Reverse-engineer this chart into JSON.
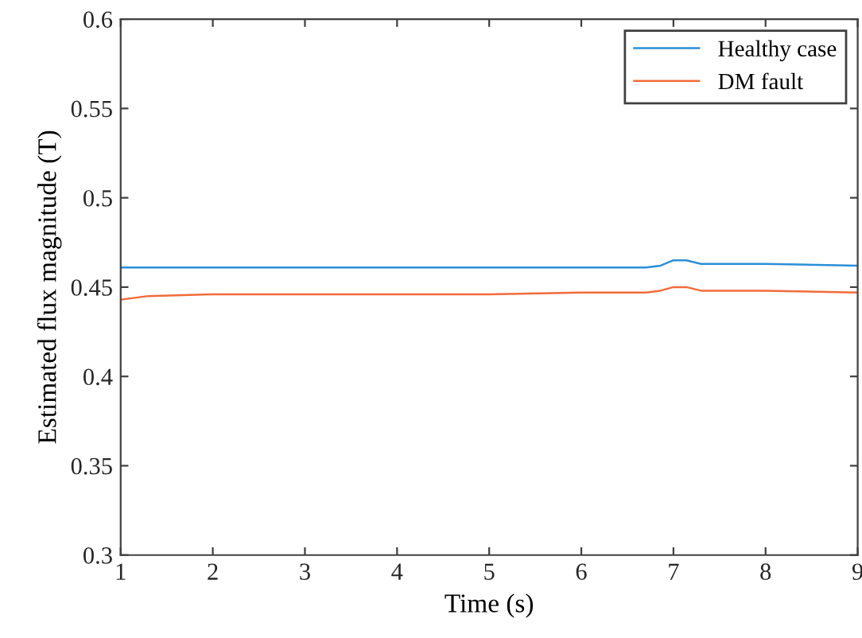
{
  "chart_data": {
    "type": "line",
    "xlabel": "Time (s)",
    "ylabel": "Estimated flux magnitude (T)",
    "xlim": [
      1,
      9
    ],
    "xticks": [
      1,
      2,
      3,
      4,
      5,
      6,
      7,
      8,
      9
    ],
    "ylim": [
      0.3,
      0.6
    ],
    "yticks": [
      0.3,
      0.35,
      0.4,
      0.45,
      0.5,
      0.55,
      0.6
    ],
    "grid": false,
    "legend": "top right",
    "series": [
      {
        "name": "Healthy case",
        "color": "#2b8fd6",
        "x": [
          1,
          1.3,
          2,
          3,
          4,
          5,
          6,
          6.7,
          6.86,
          7.0,
          7.14,
          7.3,
          7.43,
          8,
          9
        ],
        "values": [
          0.461,
          0.461,
          0.461,
          0.461,
          0.461,
          0.461,
          0.461,
          0.461,
          0.462,
          0.465,
          0.465,
          0.463,
          0.463,
          0.463,
          0.462
        ]
      },
      {
        "name": "DM fault",
        "color": "#f26b3a",
        "x": [
          1,
          1.3,
          2,
          3,
          4,
          5,
          6,
          6.7,
          6.86,
          7.0,
          7.14,
          7.3,
          7.43,
          8,
          9
        ],
        "values": [
          0.443,
          0.445,
          0.446,
          0.446,
          0.446,
          0.446,
          0.447,
          0.447,
          0.448,
          0.45,
          0.45,
          0.448,
          0.448,
          0.448,
          0.447
        ]
      }
    ]
  }
}
